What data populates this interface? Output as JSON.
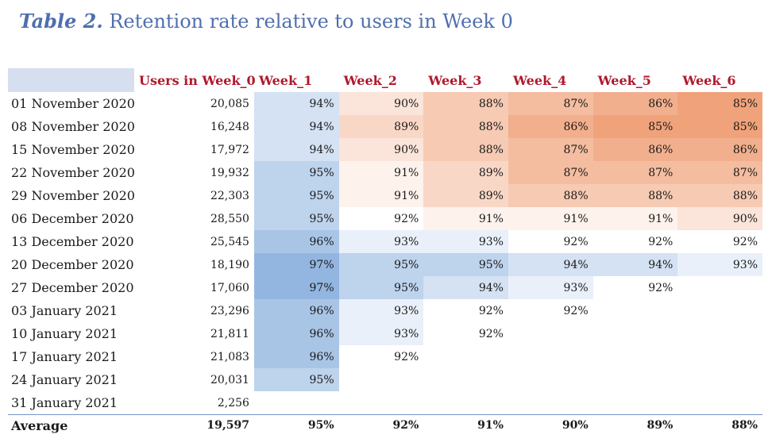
{
  "title": {
    "lead": "Table 2.",
    "rest": " Retention rate relative to users in Week 0"
  },
  "columns": [
    "",
    "Users in Week_0",
    "Week_1",
    "Week_2",
    "Week_3",
    "Week_4",
    "Week_5",
    "Week_6"
  ],
  "rows": [
    {
      "date": "01 November 2020",
      "users": "20,085",
      "w": [
        "94%",
        "90%",
        "88%",
        "87%",
        "86%",
        "85%"
      ]
    },
    {
      "date": "08 November 2020",
      "users": "16,248",
      "w": [
        "94%",
        "89%",
        "88%",
        "86%",
        "85%",
        "85%"
      ]
    },
    {
      "date": "15 November 2020",
      "users": "17,972",
      "w": [
        "94%",
        "90%",
        "88%",
        "87%",
        "86%",
        "86%"
      ]
    },
    {
      "date": "22 November 2020",
      "users": "19,932",
      "w": [
        "95%",
        "91%",
        "89%",
        "87%",
        "87%",
        "87%"
      ]
    },
    {
      "date": "29 November 2020",
      "users": "22,303",
      "w": [
        "95%",
        "91%",
        "89%",
        "88%",
        "88%",
        "88%"
      ]
    },
    {
      "date": "06 December 2020",
      "users": "28,550",
      "w": [
        "95%",
        "92%",
        "91%",
        "91%",
        "91%",
        "90%"
      ]
    },
    {
      "date": "13 December 2020",
      "users": "25,545",
      "w": [
        "96%",
        "93%",
        "93%",
        "92%",
        "92%",
        "92%"
      ]
    },
    {
      "date": "20 December 2020",
      "users": "18,190",
      "w": [
        "97%",
        "95%",
        "95%",
        "94%",
        "94%",
        "93%"
      ]
    },
    {
      "date": "27 December 2020",
      "users": "17,060",
      "w": [
        "97%",
        "95%",
        "94%",
        "93%",
        "92%"
      ]
    },
    {
      "date": "03 January 2021",
      "users": "23,296",
      "w": [
        "96%",
        "93%",
        "92%",
        "92%"
      ]
    },
    {
      "date": "10 January 2021",
      "users": "21,811",
      "w": [
        "96%",
        "93%",
        "92%"
      ]
    },
    {
      "date": "17 January 2021",
      "users": "21,083",
      "w": [
        "96%",
        "92%"
      ]
    },
    {
      "date": "24 January 2021",
      "users": "20,031",
      "w": [
        "95%"
      ]
    },
    {
      "date": "31 January 2021",
      "users": "2,256",
      "w": []
    }
  ],
  "average": {
    "label": "Average",
    "users": "19,597",
    "w": [
      "95%",
      "92%",
      "91%",
      "90%",
      "89%",
      "88%"
    ]
  },
  "colors": {
    "title": "#4f6fae",
    "header_text": "#b0182c",
    "corner_fill": "#d6dff0",
    "mid": "#ffffff",
    "high": "#93b6e0",
    "low": "#f0a27a"
  }
}
